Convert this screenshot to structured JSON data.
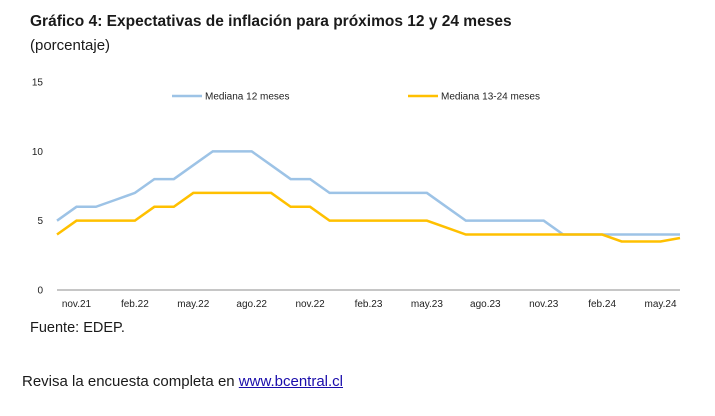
{
  "header": {
    "title": "Gráfico 4: Expectativas de inflación para próximos 12 y 24 meses",
    "subtitle": "(porcentaje)"
  },
  "source_note": "Fuente: EDEP.",
  "footer": {
    "prefix": "Revisa la encuesta completa en ",
    "link_text": "www.bcentral.cl"
  },
  "colors": {
    "series_1": "#9DC3E6",
    "series_2": "#FFC000",
    "link": "#1a0dab"
  },
  "chart_data": {
    "type": "line",
    "title": "",
    "xlabel": "",
    "ylabel": "",
    "ylim": [
      0,
      15
    ],
    "yticks": [
      0,
      5,
      10,
      15
    ],
    "x_tick_labels": [
      "nov.21",
      "feb.22",
      "may.22",
      "ago.22",
      "nov.22",
      "feb.23",
      "may.23",
      "ago.23",
      "nov.23",
      "feb.24",
      "may.24"
    ],
    "x": [
      "oct.21",
      "nov.21",
      "dic.21",
      "ene.22",
      "feb.22",
      "mar.22",
      "abr.22",
      "may.22",
      "jun.22",
      "jul.22",
      "ago.22",
      "sep.22",
      "oct.22",
      "nov.22",
      "dic.22",
      "ene.23",
      "feb.23",
      "mar.23",
      "abr.23",
      "may.23",
      "jun.23",
      "jul.23",
      "ago.23",
      "sep.23",
      "oct.23",
      "nov.23",
      "dic.23",
      "ene.24",
      "feb.24",
      "mar.24",
      "abr.24",
      "may.24",
      "jun.24"
    ],
    "grid": false,
    "legend_position": "top",
    "series": [
      {
        "name": "Mediana 12 meses",
        "color": "#9DC3E6",
        "values": [
          5,
          6,
          6,
          6.5,
          7,
          8,
          8,
          9,
          10,
          10,
          10,
          9,
          8,
          8,
          7,
          7,
          7,
          7,
          7,
          7,
          6,
          5,
          5,
          5,
          5,
          5,
          4,
          4,
          4,
          4,
          4,
          4,
          4
        ]
      },
      {
        "name": "Mediana 13-24 meses",
        "color": "#FFC000",
        "values": [
          4,
          5,
          5,
          5,
          5,
          6,
          6,
          7,
          7,
          7,
          7,
          7,
          6,
          6,
          5,
          5,
          5,
          5,
          5,
          5,
          4.5,
          4,
          4,
          4,
          4,
          4,
          4,
          4,
          4,
          3.5,
          3.5,
          3.5,
          3.75
        ]
      }
    ]
  }
}
